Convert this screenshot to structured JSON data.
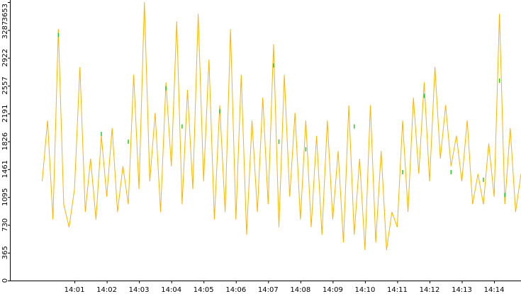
{
  "chart_data": {
    "type": "line",
    "title": "",
    "xlabel": "",
    "ylabel": "",
    "grid": false,
    "legend": "none",
    "ylim": [
      0,
      3653
    ],
    "xlim": [
      "14:00:00",
      "14:14:50"
    ],
    "y_ticks": [
      "0",
      "365",
      "730",
      "1095",
      "1461",
      "1826",
      "2191",
      "2557",
      "2922",
      "3287",
      "3653"
    ],
    "x_ticks": [
      "14:01",
      "14:02",
      "14:03",
      "14:04",
      "14:05",
      "14:06",
      "14:07",
      "14:08",
      "14:09",
      "14:10",
      "14:11",
      "14:12",
      "14:13",
      "14:14"
    ],
    "colors": {
      "series_a": "#ffb400",
      "series_b": "#22cc22",
      "axis": "#000000",
      "background": "#ffffff"
    },
    "series": [
      {
        "x": [
          "14:00:00",
          "14:00:10",
          "14:00:20",
          "14:00:30",
          "14:00:40",
          "14:00:50",
          "14:01:00",
          "14:01:10",
          "14:01:20",
          "14:01:30",
          "14:01:40",
          "14:01:50",
          "14:02:00",
          "14:02:10",
          "14:02:20",
          "14:02:30",
          "14:02:40",
          "14:02:50",
          "14:03:00",
          "14:03:10",
          "14:03:20",
          "14:03:30",
          "14:03:40",
          "14:03:50",
          "14:04:00",
          "14:04:10",
          "14:04:20",
          "14:04:30",
          "14:04:40",
          "14:04:50",
          "14:05:00",
          "14:05:10",
          "14:05:20",
          "14:05:30",
          "14:05:40",
          "14:05:50",
          "14:06:00",
          "14:06:10",
          "14:06:20",
          "14:06:30",
          "14:06:40",
          "14:06:50",
          "14:07:00",
          "14:07:10",
          "14:07:20",
          "14:07:30",
          "14:07:40",
          "14:07:50",
          "14:08:00",
          "14:08:10",
          "14:08:20",
          "14:08:30",
          "14:08:40",
          "14:08:50",
          "14:09:00",
          "14:09:10",
          "14:09:20",
          "14:09:30",
          "14:09:40",
          "14:09:50",
          "14:10:00",
          "14:10:10",
          "14:10:20",
          "14:10:30",
          "14:10:40",
          "14:10:50",
          "14:11:00",
          "14:11:10",
          "14:11:20",
          "14:11:30",
          "14:11:40",
          "14:11:50",
          "14:12:00",
          "14:12:10",
          "14:12:20",
          "14:12:30",
          "14:12:40",
          "14:12:50",
          "14:13:00",
          "14:13:10",
          "14:13:20",
          "14:13:30",
          "14:13:40",
          "14:13:50",
          "14:14:00",
          "14:14:10",
          "14:14:20",
          "14:14:30",
          "14:14:40",
          "14:14:50"
        ],
        "values": [
          1300,
          2100,
          800,
          3300,
          1000,
          700,
          1200,
          2800,
          900,
          1600,
          800,
          1900,
          1100,
          2000,
          900,
          1500,
          1000,
          2700,
          1200,
          3653,
          1300,
          2200,
          900,
          2600,
          1500,
          3400,
          1000,
          2500,
          1200,
          3500,
          1300,
          2900,
          800,
          2300,
          900,
          3300,
          800,
          2700,
          600,
          2100,
          900,
          2400,
          1000,
          3100,
          700,
          2700,
          1100,
          2200,
          800,
          2100,
          700,
          1900,
          600,
          2100,
          800,
          1700,
          500,
          2300,
          600,
          1600,
          400,
          2300,
          500,
          1700,
          400,
          900,
          700,
          2100,
          900,
          2400,
          1400,
          2600,
          1300,
          2800,
          1600,
          2300,
          1500,
          1900,
          1300,
          2100,
          1000,
          1400,
          1000,
          1800,
          1100,
          3500,
          1000,
          2000,
          900,
          1400
        ]
      },
      {
        "x": [
          "14:00:30",
          "14:01:50",
          "14:02:40",
          "14:03:50",
          "14:04:20",
          "14:05:30",
          "14:07:10",
          "14:07:20",
          "14:08:10",
          "14:09:40",
          "14:11:10",
          "14:11:50",
          "14:12:40",
          "14:13:40",
          "14:14:10",
          "14:14:20"
        ],
        "values": [
          3250,
          1950,
          1850,
          2550,
          2050,
          2250,
          2850,
          1850,
          1750,
          2050,
          1450,
          2450,
          1450,
          1350,
          2650,
          1150
        ]
      }
    ]
  }
}
